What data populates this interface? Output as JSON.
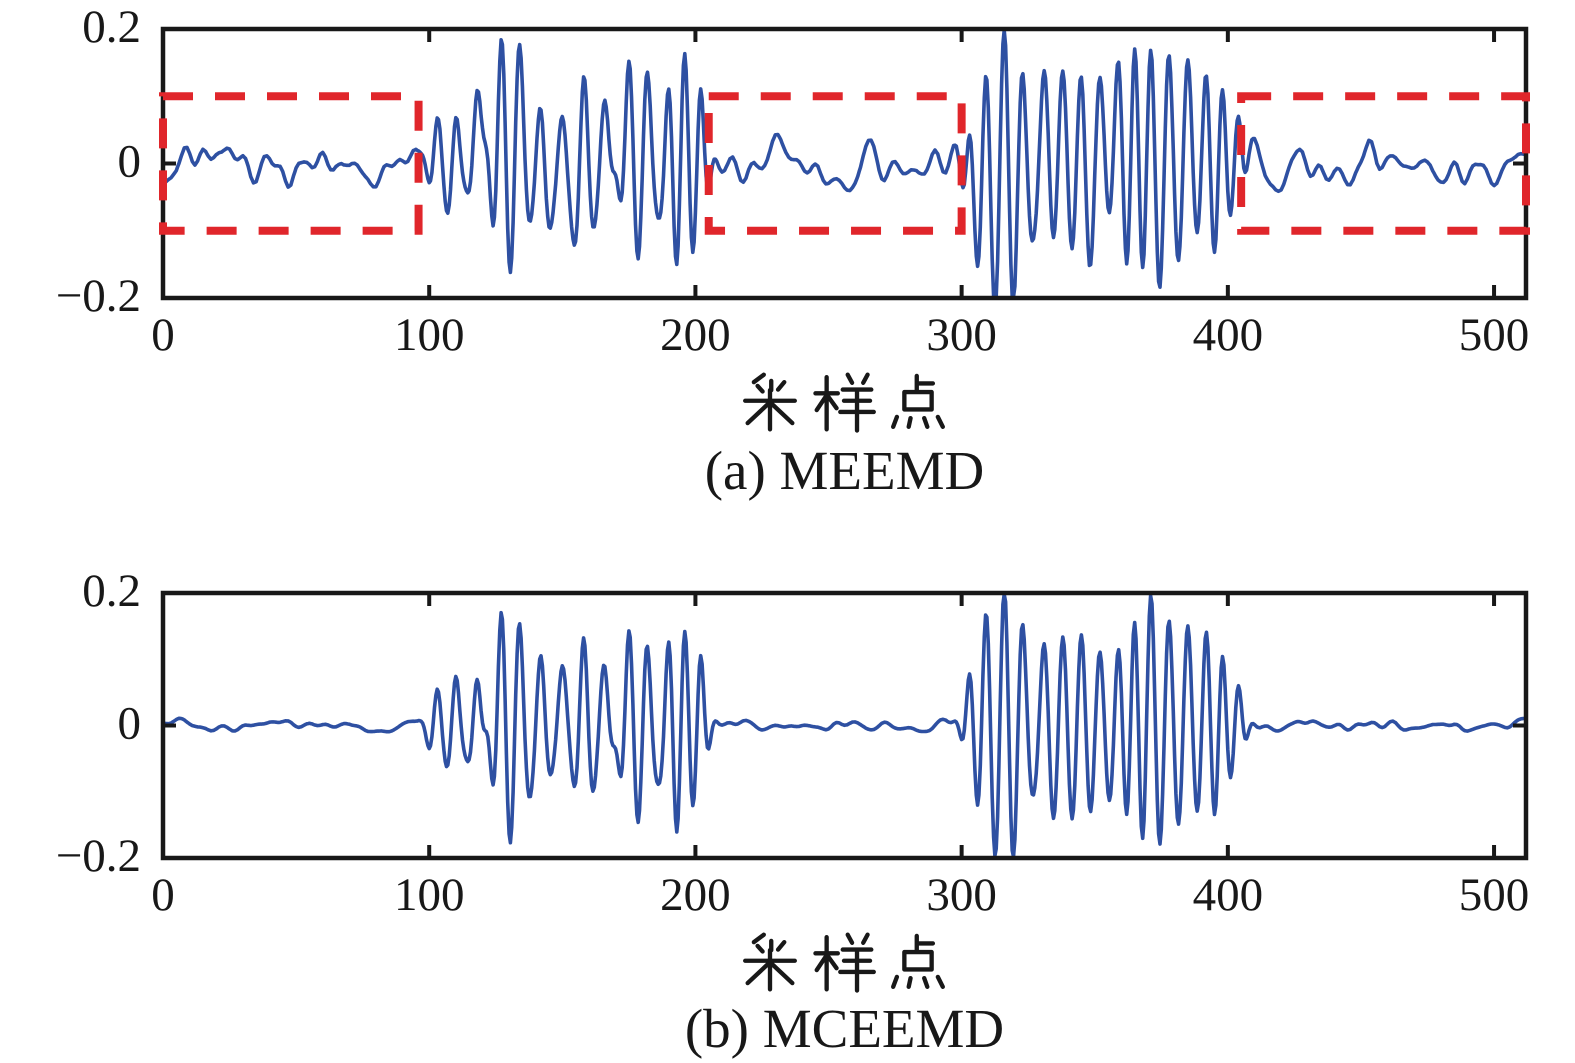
{
  "figure": {
    "background": "#ffffff"
  },
  "colors": {
    "signal_line": "#2e50a2",
    "highlight_box": "#e0262b",
    "axis": "#181818",
    "text": "#181818"
  },
  "chart_data": [
    {
      "id": "a",
      "type": "line",
      "caption": "(a) MEEMD",
      "xlabel": "采样点",
      "x_range": [
        0,
        512
      ],
      "x_ticks": [
        0,
        100,
        200,
        300,
        400,
        500
      ],
      "x_tick_labels": [
        "0",
        "100",
        "200",
        "300",
        "400",
        "500"
      ],
      "y_range": [
        -0.2,
        0.2
      ],
      "y_ticks": [
        -0.2,
        0,
        0.2
      ],
      "y_tick_labels": [
        "−0.2",
        "0",
        "0.2"
      ],
      "grid": false,
      "legend": null,
      "seed": 20240601,
      "noise_amp": 0.08,
      "carrier_period": 6.5,
      "segments": [
        {
          "range": [
            0,
            96
          ],
          "type": "noise",
          "peak_amplitude": 0.04
        },
        {
          "range": [
            96,
            205
          ],
          "type": "burst",
          "peak_amplitude": 0.15
        },
        {
          "range": [
            205,
            300
          ],
          "type": "noise",
          "peak_amplitude": 0.04
        },
        {
          "range": [
            300,
            405
          ],
          "type": "burst",
          "peak_amplitude": 0.18
        },
        {
          "range": [
            405,
            512
          ],
          "type": "noise",
          "peak_amplitude": 0.04
        }
      ],
      "burst_packets": [
        [
          103,
          3,
          0.05
        ],
        [
          110,
          3,
          0.07
        ],
        [
          118,
          3.5,
          0.08
        ],
        [
          127,
          4,
          0.15
        ],
        [
          134,
          4,
          0.12
        ],
        [
          142,
          4,
          0.1
        ],
        [
          150,
          3.5,
          0.08
        ],
        [
          158,
          4,
          0.13
        ],
        [
          166,
          4,
          0.09
        ],
        [
          175,
          4,
          0.135
        ],
        [
          182,
          3.5,
          0.1
        ],
        [
          190,
          3.5,
          0.105
        ],
        [
          196,
          3.5,
          0.12
        ],
        [
          202,
          2.5,
          0.08
        ],
        [
          303,
          2.5,
          0.05
        ],
        [
          309,
          3.5,
          0.13
        ],
        [
          316,
          4,
          0.175
        ],
        [
          323,
          4,
          0.12
        ],
        [
          331,
          4,
          0.11
        ],
        [
          338,
          3.5,
          0.1
        ],
        [
          345,
          4,
          0.12
        ],
        [
          352,
          3.5,
          0.08
        ],
        [
          359,
          3.5,
          0.1
        ],
        [
          365,
          3,
          0.09
        ],
        [
          371,
          4,
          0.155
        ],
        [
          378,
          4,
          0.12
        ],
        [
          385,
          3.5,
          0.11
        ],
        [
          392,
          3.5,
          0.115
        ],
        [
          398,
          3,
          0.085
        ],
        [
          404,
          2.5,
          0.05
        ]
      ],
      "highlight_boxes": [
        {
          "x0": 0,
          "x1": 96,
          "y0": -0.1,
          "y1": 0.1,
          "style": "dashed"
        },
        {
          "x0": 205,
          "x1": 300,
          "y0": -0.1,
          "y1": 0.1,
          "style": "dashed"
        },
        {
          "x0": 405,
          "x1": 512,
          "y0": -0.1,
          "y1": 0.1,
          "style": "dashed"
        }
      ]
    },
    {
      "id": "b",
      "type": "line",
      "caption": "(b) MCEEMD",
      "xlabel": "采样点",
      "x_range": [
        0,
        512
      ],
      "x_ticks": [
        0,
        100,
        200,
        300,
        400,
        500
      ],
      "x_tick_labels": [
        "0",
        "100",
        "200",
        "300",
        "400",
        "500"
      ],
      "y_range": [
        -0.2,
        0.2
      ],
      "y_ticks": [
        -0.2,
        0,
        0.2
      ],
      "y_tick_labels": [
        "−0.2",
        "0",
        "0.2"
      ],
      "grid": false,
      "legend": null,
      "seed": 8675309,
      "noise_amp": 0.02,
      "carrier_period": 6.5,
      "segments": [
        {
          "range": [
            0,
            96
          ],
          "type": "noise",
          "peak_amplitude": 0.01
        },
        {
          "range": [
            96,
            205
          ],
          "type": "burst",
          "peak_amplitude": 0.15
        },
        {
          "range": [
            205,
            300
          ],
          "type": "noise",
          "peak_amplitude": 0.01
        },
        {
          "range": [
            300,
            405
          ],
          "type": "burst",
          "peak_amplitude": 0.18
        },
        {
          "range": [
            405,
            512
          ],
          "type": "noise",
          "peak_amplitude": 0.01
        }
      ],
      "burst_packets": [
        [
          103,
          3,
          0.05
        ],
        [
          110,
          3,
          0.07
        ],
        [
          118,
          3.5,
          0.08
        ],
        [
          127,
          4,
          0.15
        ],
        [
          134,
          4,
          0.12
        ],
        [
          142,
          4,
          0.1
        ],
        [
          150,
          3.5,
          0.08
        ],
        [
          158,
          4,
          0.13
        ],
        [
          166,
          4,
          0.09
        ],
        [
          175,
          4,
          0.135
        ],
        [
          182,
          3.5,
          0.1
        ],
        [
          190,
          3.5,
          0.105
        ],
        [
          196,
          3.5,
          0.12
        ],
        [
          202,
          2.5,
          0.08
        ],
        [
          303,
          2.5,
          0.05
        ],
        [
          309,
          3.5,
          0.13
        ],
        [
          316,
          4,
          0.175
        ],
        [
          323,
          4,
          0.12
        ],
        [
          331,
          4,
          0.11
        ],
        [
          338,
          3.5,
          0.1
        ],
        [
          345,
          4,
          0.12
        ],
        [
          352,
          3.5,
          0.08
        ],
        [
          359,
          3.5,
          0.1
        ],
        [
          365,
          3,
          0.09
        ],
        [
          371,
          4,
          0.155
        ],
        [
          378,
          4,
          0.12
        ],
        [
          385,
          3.5,
          0.11
        ],
        [
          392,
          3.5,
          0.115
        ],
        [
          398,
          3,
          0.085
        ],
        [
          404,
          2.5,
          0.05
        ]
      ],
      "highlight_boxes": []
    }
  ]
}
